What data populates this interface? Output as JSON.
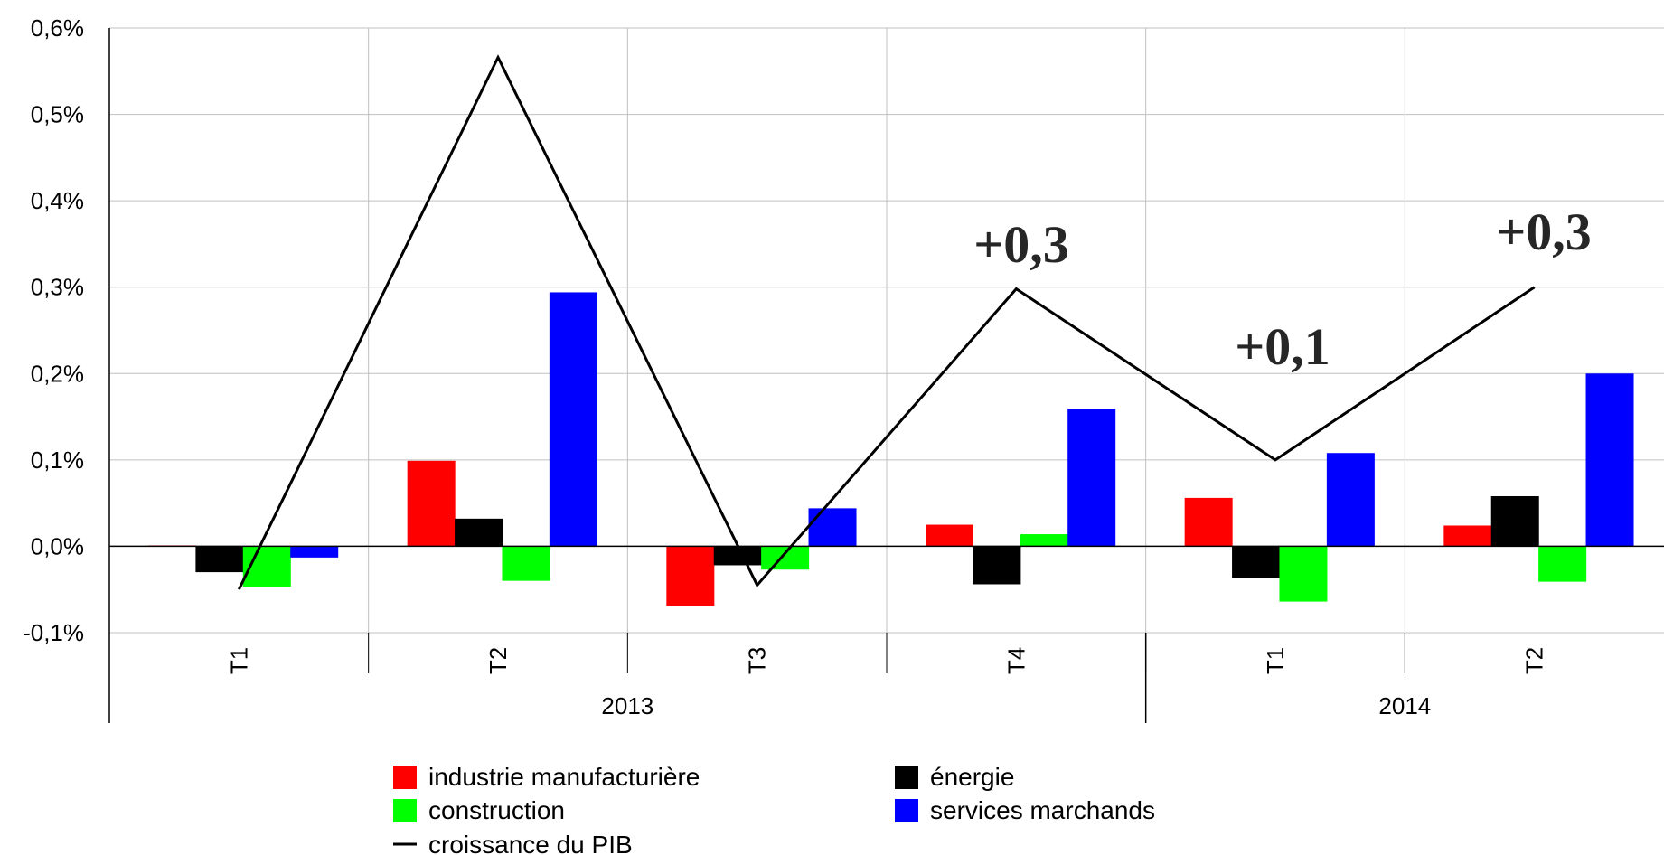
{
  "chart_data": {
    "type": "bar",
    "title": "",
    "xlabel": "",
    "ylabel": "",
    "ylim": [
      -0.1,
      0.6
    ],
    "y_ticks": [
      "-0,1%",
      "0,0%",
      "0,1%",
      "0,2%",
      "0,3%",
      "0,4%",
      "0,5%",
      "0,6%"
    ],
    "grid": true,
    "categories": [
      "T1",
      "T2",
      "T3",
      "T4",
      "T1",
      "T2"
    ],
    "year_groups": [
      {
        "label": "2013",
        "span": 4
      },
      {
        "label": "2014",
        "span": 2
      }
    ],
    "series": [
      {
        "name": "industrie manufacturière",
        "color": "#ff0000",
        "kind": "bar",
        "values": [
          0.001,
          0.099,
          -0.069,
          0.025,
          0.056,
          0.024
        ]
      },
      {
        "name": "énergie",
        "color": "#000000",
        "kind": "bar",
        "values": [
          -0.03,
          0.032,
          -0.022,
          -0.044,
          -0.037,
          0.058
        ]
      },
      {
        "name": "construction",
        "color": "#00ff00",
        "kind": "bar",
        "values": [
          -0.047,
          -0.04,
          -0.027,
          0.014,
          -0.064,
          -0.041
        ]
      },
      {
        "name": "services marchands",
        "color": "#0000ff",
        "kind": "bar",
        "values": [
          -0.013,
          0.294,
          0.044,
          0.159,
          0.108,
          0.2
        ]
      },
      {
        "name": "croissance du PIB",
        "color": "#000000",
        "kind": "line",
        "values": [
          -0.05,
          0.566,
          -0.045,
          0.298,
          0.1,
          0.3
        ]
      }
    ],
    "annotations": [
      "+0,3",
      "+0,1",
      "+0,3"
    ],
    "legend_position": "bottom"
  }
}
